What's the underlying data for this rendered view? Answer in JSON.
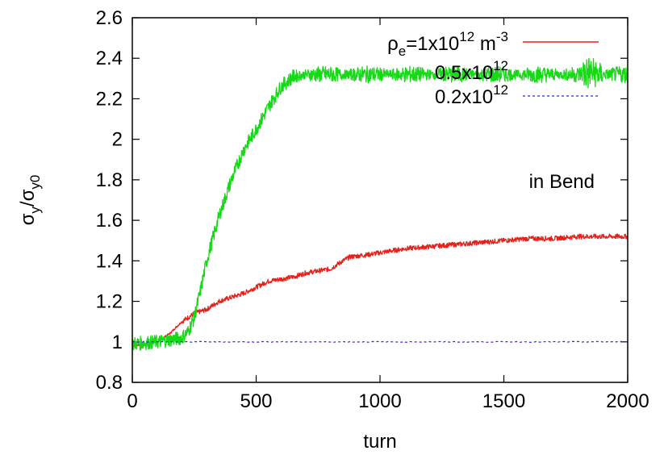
{
  "chart_data": {
    "type": "line",
    "title": "",
    "xlabel": "turn",
    "ylabel_main": "σ",
    "ylabel_sub1": "y",
    "ylabel_sep": "/σ",
    "ylabel_sub2": "y0",
    "xlim": [
      0,
      2000
    ],
    "ylim": [
      0.8,
      2.6
    ],
    "xticks": [
      "0",
      "500",
      "1000",
      "1500",
      "2000"
    ],
    "yticks": [
      "0.8",
      "1",
      "1.2",
      "1.4",
      "1.6",
      "1.8",
      "2",
      "2.2",
      "2.4",
      "2.6"
    ],
    "annotation": "in Bend",
    "legend_position": "top-right",
    "legend": {
      "e1": {
        "rho": "ρ",
        "rho_sub": "e",
        "mid": "=1x10",
        "exp": "12",
        "unit": " m",
        "unit_exp": "-3"
      },
      "e2": {
        "base": "0.5x10",
        "exp": "12"
      },
      "e3": {
        "base": "0.2x10",
        "exp": "12"
      }
    },
    "series": [
      {
        "color": "#e8201a",
        "style": "solid",
        "jitter": 0.012,
        "x": [
          0,
          100,
          150,
          200,
          250,
          300,
          350,
          400,
          450,
          500,
          550,
          600,
          650,
          700,
          750,
          800,
          850,
          880,
          950,
          1000,
          1100,
          1200,
          1300,
          1400,
          1500,
          1600,
          1700,
          1800,
          1900,
          2000
        ],
        "y": [
          0.98,
          1.0,
          1.04,
          1.1,
          1.14,
          1.16,
          1.2,
          1.22,
          1.24,
          1.27,
          1.3,
          1.31,
          1.32,
          1.34,
          1.35,
          1.36,
          1.4,
          1.42,
          1.43,
          1.44,
          1.46,
          1.47,
          1.48,
          1.49,
          1.5,
          1.51,
          1.51,
          1.52,
          1.52,
          1.52
        ]
      },
      {
        "color": "#16d916",
        "style": "solid",
        "jitter": 0.035,
        "x": [
          0,
          100,
          150,
          200,
          225,
          250,
          275,
          300,
          350,
          400,
          450,
          500,
          550,
          600,
          650,
          700,
          750,
          800,
          900,
          1000,
          1100,
          1200,
          1300,
          1400,
          1500,
          1600,
          1700,
          1800,
          1850,
          1900,
          2000
        ],
        "y": [
          0.99,
          1.0,
          1.01,
          1.02,
          1.05,
          1.12,
          1.25,
          1.4,
          1.62,
          1.8,
          1.95,
          2.05,
          2.16,
          2.26,
          2.31,
          2.32,
          2.32,
          2.32,
          2.32,
          2.32,
          2.32,
          2.32,
          2.32,
          2.32,
          2.32,
          2.32,
          2.32,
          2.32,
          2.33,
          2.32,
          2.32
        ]
      },
      {
        "color": "#2a2ad8",
        "style": "dashed",
        "jitter": 0.002,
        "x": [
          0,
          500,
          1000,
          1500,
          2000
        ],
        "y": [
          1.0,
          1.0,
          1.0,
          1.0,
          1.0
        ]
      }
    ]
  }
}
